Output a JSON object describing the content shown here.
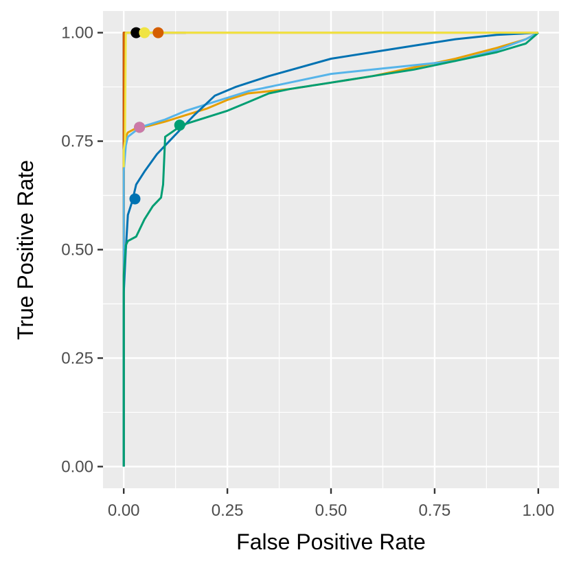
{
  "chart_data": {
    "type": "line",
    "subtype": "roc-curves",
    "xlabel": "False Positive Rate",
    "ylabel": "True Positive Rate",
    "xlim": [
      -0.05,
      1.05
    ],
    "ylim": [
      -0.05,
      1.05
    ],
    "x_ticks": [
      "0.00",
      "0.25",
      "0.50",
      "0.75",
      "1.00"
    ],
    "y_ticks": [
      "0.00",
      "0.25",
      "0.50",
      "0.75",
      "1.00"
    ],
    "x_tick_values": [
      0,
      0.25,
      0.5,
      0.75,
      1.0
    ],
    "y_tick_values": [
      0,
      0.25,
      0.5,
      0.75,
      1.0
    ],
    "grid": true,
    "background": "#ebebeb",
    "grid_color": "#ffffff",
    "legend": "none",
    "series": [
      {
        "name": "black",
        "color": "#000000",
        "x": [
          0,
          0,
          0.01,
          0.05,
          0.1,
          0.15
        ],
        "y": [
          0,
          1.0,
          1.0,
          1.0,
          1.0,
          1.0
        ],
        "marker": {
          "x": 0.03,
          "y": 1.0
        }
      },
      {
        "name": "vermillion",
        "color": "#d55e00",
        "x": [
          0,
          0,
          0.01,
          0.05,
          0.1,
          0.2,
          0.4,
          0.6,
          0.8,
          1.0
        ],
        "y": [
          0,
          1.0,
          1.0,
          1.0,
          1.0,
          1.0,
          1.0,
          1.0,
          1.0,
          1.0
        ],
        "marker": {
          "x": 0.083,
          "y": 1.0
        }
      },
      {
        "name": "orange",
        "color": "#e69f00",
        "x": [
          0,
          0,
          0.005,
          0.01,
          0.03,
          0.06,
          0.1,
          0.15,
          0.2,
          0.25,
          0.3,
          0.4,
          0.5,
          0.6,
          0.7,
          0.8,
          0.9,
          0.97,
          1.0
        ],
        "y": [
          0,
          0.69,
          0.76,
          0.77,
          0.78,
          0.785,
          0.795,
          0.81,
          0.825,
          0.845,
          0.86,
          0.87,
          0.885,
          0.9,
          0.92,
          0.94,
          0.965,
          0.985,
          1.0
        ],
        "marker": {
          "x": 0.038,
          "y": 0.782
        }
      },
      {
        "name": "sky-blue",
        "color": "#56b4e9",
        "x": [
          0,
          0,
          0.005,
          0.01,
          0.03,
          0.05,
          0.1,
          0.15,
          0.2,
          0.25,
          0.3,
          0.4,
          0.5,
          0.6,
          0.7,
          0.8,
          0.9,
          0.97,
          1.0
        ],
        "y": [
          0,
          0.68,
          0.74,
          0.76,
          0.775,
          0.785,
          0.8,
          0.82,
          0.835,
          0.85,
          0.865,
          0.885,
          0.905,
          0.915,
          0.925,
          0.935,
          0.96,
          0.985,
          1.0
        ],
        "marker": {
          "x": 0.038,
          "y": 0.782
        }
      },
      {
        "name": "pink",
        "color": "#cc79a7",
        "x": [
          0.038
        ],
        "y": [
          0.782
        ],
        "marker": {
          "x": 0.038,
          "y": 0.782
        }
      },
      {
        "name": "blue",
        "color": "#0072b2",
        "x": [
          0,
          0,
          0.005,
          0.01,
          0.02,
          0.03,
          0.05,
          0.08,
          0.12,
          0.17,
          0.22,
          0.27,
          0.35,
          0.5,
          0.6,
          0.7,
          0.8,
          0.9,
          1.0
        ],
        "y": [
          0,
          0.4,
          0.5,
          0.58,
          0.61,
          0.65,
          0.68,
          0.72,
          0.76,
          0.81,
          0.855,
          0.875,
          0.9,
          0.94,
          0.955,
          0.97,
          0.985,
          0.995,
          1.0
        ],
        "marker": {
          "x": 0.027,
          "y": 0.617
        }
      },
      {
        "name": "green",
        "color": "#009e73",
        "x": [
          0,
          0,
          0.005,
          0.01,
          0.03,
          0.05,
          0.07,
          0.09,
          0.095,
          0.1,
          0.13,
          0.15,
          0.2,
          0.25,
          0.3,
          0.35,
          0.4,
          0.5,
          0.6,
          0.7,
          0.8,
          0.9,
          0.97,
          1.0
        ],
        "y": [
          0,
          0.44,
          0.51,
          0.52,
          0.53,
          0.57,
          0.6,
          0.62,
          0.65,
          0.76,
          0.78,
          0.79,
          0.805,
          0.82,
          0.84,
          0.86,
          0.87,
          0.885,
          0.9,
          0.915,
          0.935,
          0.955,
          0.975,
          1.0
        ],
        "marker": {
          "x": 0.135,
          "y": 0.787
        }
      },
      {
        "name": "yellow",
        "color": "#f0e442",
        "x": [
          0,
          0,
          0.003,
          0.005,
          0.01,
          0.05,
          0.1,
          0.2,
          0.4,
          0.6,
          0.8,
          1.0
        ],
        "y": [
          0.69,
          0.73,
          0.75,
          1.0,
          1.0,
          1.0,
          1.0,
          1.0,
          1.0,
          1.0,
          1.0,
          1.0
        ],
        "marker": {
          "x": 0.05,
          "y": 1.0
        }
      }
    ]
  }
}
